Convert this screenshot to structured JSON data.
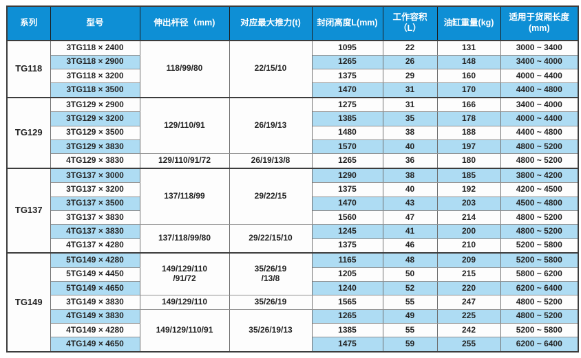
{
  "colors": {
    "header_bg": "#0e8fd5",
    "header_text": "#ffffff",
    "stripe_bg": "#aedcf3",
    "row_bg": "#fdfdfd",
    "grid_line": "#8f8f8f",
    "group_line": "#3c3c3c",
    "text": "#232323"
  },
  "table": {
    "columns": [
      "系列",
      "型号",
      "伸出杆径（mm)",
      "对应最大推力(t)",
      "封闭高度L(mm)",
      "工作容积（L）",
      "油缸重量(kg)",
      "适用于货厢长度\n(mm)"
    ],
    "groups": [
      {
        "series": "TG118",
        "rows": [
          {
            "model": "3TG118 × 2400",
            "height": "1095",
            "volume": "22",
            "weight": "131",
            "range": "3000 ~ 3400"
          },
          {
            "model": "3TG118 × 2900",
            "height": "1265",
            "volume": "26",
            "weight": "148",
            "range": "3400 ~ 4000"
          },
          {
            "model": "3TG118 × 3200",
            "height": "1375",
            "volume": "29",
            "weight": "160",
            "range": "4000 ~ 4400"
          },
          {
            "model": "3TG118 × 3500",
            "height": "1470",
            "volume": "31",
            "weight": "170",
            "range": "4400 ~ 4800"
          }
        ],
        "spans": [
          {
            "start": 0,
            "count": 4,
            "rod": "118/99/80",
            "thrust": "22/15/10"
          }
        ]
      },
      {
        "series": "TG129",
        "rows": [
          {
            "model": "3TG129 × 2900",
            "height": "1275",
            "volume": "31",
            "weight": "166",
            "range": "3400 ~ 4000"
          },
          {
            "model": "3TG129 × 3200",
            "height": "1385",
            "volume": "35",
            "weight": "178",
            "range": "4000 ~ 4400"
          },
          {
            "model": "3TG129 × 3500",
            "height": "1480",
            "volume": "38",
            "weight": "188",
            "range": "4400 ~ 4800"
          },
          {
            "model": "3TG129 × 3830",
            "height": "1570",
            "volume": "40",
            "weight": "197",
            "range": "4800 ~ 5200"
          },
          {
            "model": "4TG129 × 3830",
            "height": "1265",
            "volume": "36",
            "weight": "180",
            "range": "4800 ~ 5200"
          }
        ],
        "spans": [
          {
            "start": 0,
            "count": 4,
            "rod": "129/110/91",
            "thrust": "26/19/13"
          },
          {
            "start": 4,
            "count": 1,
            "rod": "129/110/91/72",
            "thrust": "26/19/13/8"
          }
        ]
      },
      {
        "series": "TG137",
        "rows": [
          {
            "model": "3TG137 × 3000",
            "height": "1290",
            "volume": "38",
            "weight": "185",
            "range": "3800 ~ 4200"
          },
          {
            "model": "3TG137 × 3200",
            "height": "1375",
            "volume": "40",
            "weight": "192",
            "range": "4200 ~ 4500"
          },
          {
            "model": "3TG137 × 3500",
            "height": "1470",
            "volume": "43",
            "weight": "203",
            "range": "4500 ~ 4800"
          },
          {
            "model": "3TG137 × 3830",
            "height": "1560",
            "volume": "47",
            "weight": "214",
            "range": "4800 ~ 5200"
          },
          {
            "model": "4TG137 × 3830",
            "height": "1245",
            "volume": "41",
            "weight": "200",
            "range": "4800 ~ 5200"
          },
          {
            "model": "4TG137 × 4280",
            "height": "1375",
            "volume": "46",
            "weight": "210",
            "range": "5200 ~ 5800"
          }
        ],
        "spans": [
          {
            "start": 0,
            "count": 4,
            "rod": "137/118/99",
            "thrust": "29/22/15"
          },
          {
            "start": 4,
            "count": 2,
            "rod": "137/118/99/80",
            "thrust": "29/22/15/10"
          }
        ]
      },
      {
        "series": "TG149",
        "rows": [
          {
            "model": "5TG149 × 4280",
            "height": "1165",
            "volume": "48",
            "weight": "209",
            "range": "5200 ~ 5800"
          },
          {
            "model": "5TG149 × 4450",
            "height": "1205",
            "volume": "50",
            "weight": "215",
            "range": "5800 ~ 6200"
          },
          {
            "model": "5TG149 × 4650",
            "height": "1240",
            "volume": "52",
            "weight": "220",
            "range": "6200 ~ 6400"
          },
          {
            "model": "3TG149 × 3830",
            "height": "1565",
            "volume": "55",
            "weight": "247",
            "range": "4800 ~ 5200"
          },
          {
            "model": "4TG149 × 3830",
            "height": "1265",
            "volume": "49",
            "weight": "225",
            "range": "4800 ~ 5200"
          },
          {
            "model": "4TG149 × 4280",
            "height": "1385",
            "volume": "55",
            "weight": "242",
            "range": "5200 ~ 5800"
          },
          {
            "model": "4TG149 × 4650",
            "height": "1475",
            "volume": "59",
            "weight": "255",
            "range": "6200 ~ 6400"
          }
        ],
        "spans": [
          {
            "start": 0,
            "count": 3,
            "rod": "149/129/110\n/91/72",
            "thrust": "35/26/19\n/13/8"
          },
          {
            "start": 3,
            "count": 1,
            "rod": "149/129/110",
            "thrust": "35/26/19"
          },
          {
            "start": 4,
            "count": 3,
            "rod": "149/129/110/91",
            "thrust": "35/26/19/13"
          }
        ]
      }
    ]
  }
}
